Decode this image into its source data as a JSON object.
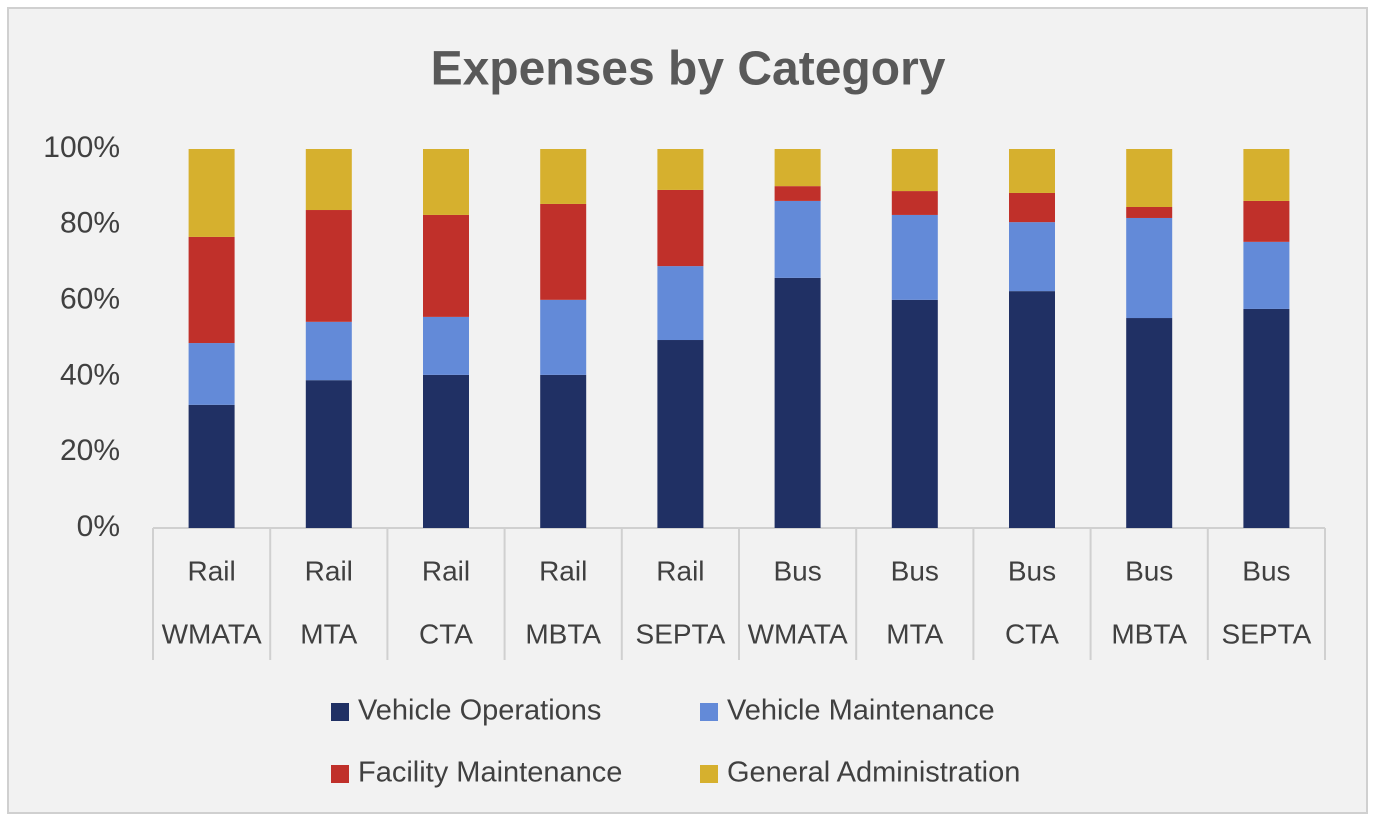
{
  "chart_data": {
    "type": "stacked_bar",
    "title": "Expenses by Category",
    "categories": [
      [
        "Rail",
        "WMATA"
      ],
      [
        "Rail",
        "MTA"
      ],
      [
        "Rail",
        "CTA"
      ],
      [
        "Rail",
        "MBTA"
      ],
      [
        "Rail",
        "SEPTA"
      ],
      [
        "Bus",
        "WMATA"
      ],
      [
        "Bus",
        "MTA"
      ],
      [
        "Bus",
        "CTA"
      ],
      [
        "Bus",
        "MBTA"
      ],
      [
        "Bus",
        "SEPTA"
      ]
    ],
    "series": [
      {
        "name": "Vehicle Operations",
        "color": "#203064",
        "values": [
          32.5,
          39,
          40.4,
          40.4,
          49.6,
          66,
          60.2,
          62.5,
          55.4,
          57.8
        ]
      },
      {
        "name": "Vehicle Maintenance",
        "color": "#638ad8",
        "values": [
          16.3,
          15.4,
          15.3,
          19.8,
          19.5,
          20.3,
          22.4,
          18.2,
          26.4,
          17.7
        ]
      },
      {
        "name": "Facility Maintenance",
        "color": "#c0302a",
        "values": [
          28,
          29.5,
          26.9,
          25.3,
          20.1,
          3.9,
          6.3,
          7.7,
          2.9,
          10.8
        ]
      },
      {
        "name": "General Administration",
        "color": "#d6b02e",
        "values": [
          23.2,
          16.1,
          17.4,
          14.5,
          10.8,
          9.8,
          11.1,
          11.6,
          15.3,
          13.7
        ]
      }
    ],
    "ylim": [
      0,
      100
    ],
    "yticks": [
      {
        "value": 0,
        "label": "0%"
      },
      {
        "value": 20,
        "label": "20%"
      },
      {
        "value": 40,
        "label": "40%"
      },
      {
        "value": 60,
        "label": "60%"
      },
      {
        "value": 80,
        "label": "80%"
      },
      {
        "value": 100,
        "label": "100%"
      }
    ],
    "legend": "bottom"
  }
}
